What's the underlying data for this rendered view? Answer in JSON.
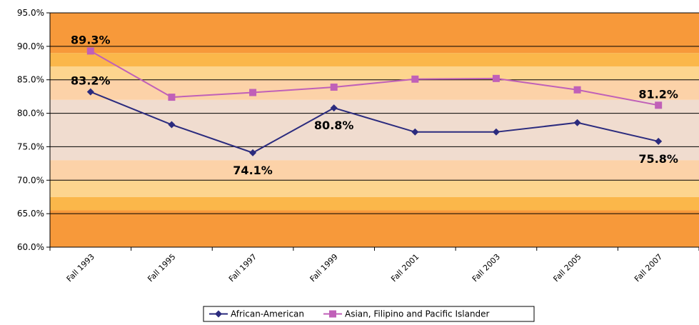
{
  "chart_data": {
    "type": "line",
    "categories": [
      "Fall 1993",
      "Fall 1995",
      "Fall 1997",
      "Fall 1999",
      "Fall 2001",
      "Fall 2003",
      "Fall 2005",
      "Fall 2007"
    ],
    "series": [
      {
        "name": "African-American",
        "values": [
          83.2,
          78.3,
          74.1,
          80.8,
          77.2,
          77.2,
          78.6,
          75.8
        ],
        "color": "#2b2b7e",
        "marker": "diamond"
      },
      {
        "name": "Asian, Filipino and Pacific Islander",
        "values": [
          89.3,
          82.4,
          83.1,
          83.9,
          85.1,
          85.2,
          83.5,
          81.2
        ],
        "color": "#c060b8",
        "marker": "square"
      }
    ],
    "data_labels": [
      {
        "series": 1,
        "index": 0,
        "text": "89.3%",
        "pos": "above"
      },
      {
        "series": 0,
        "index": 0,
        "text": "83.2%",
        "pos": "above"
      },
      {
        "series": 0,
        "index": 2,
        "text": "74.1%",
        "pos": "below"
      },
      {
        "series": 0,
        "index": 3,
        "text": "80.8%",
        "pos": "below"
      },
      {
        "series": 1,
        "index": 7,
        "text": "81.2%",
        "pos": "above"
      },
      {
        "series": 0,
        "index": 7,
        "text": "75.8%",
        "pos": "below"
      }
    ],
    "yticks": [
      "60.0%",
      "65.0%",
      "70.0%",
      "75.0%",
      "80.0%",
      "85.0%",
      "90.0%",
      "95.0%"
    ],
    "ylim": [
      60,
      95
    ],
    "grid": true,
    "legend": "bottom",
    "background_bands": [
      {
        "from": 60,
        "to": 65.5,
        "color": "#f7993a"
      },
      {
        "from": 65.5,
        "to": 67.5,
        "color": "#fbb74a"
      },
      {
        "from": 67.5,
        "to": 70,
        "color": "#fdd58e"
      },
      {
        "from": 70,
        "to": 73,
        "color": "#fcd2a8"
      },
      {
        "from": 73,
        "to": 82,
        "color": "#f0dccf"
      },
      {
        "from": 82,
        "to": 85,
        "color": "#fcd2a8"
      },
      {
        "from": 85,
        "to": 87,
        "color": "#fdd58e"
      },
      {
        "from": 87,
        "to": 89,
        "color": "#fbb74a"
      },
      {
        "from": 89,
        "to": 95,
        "color": "#f7993a"
      }
    ]
  }
}
